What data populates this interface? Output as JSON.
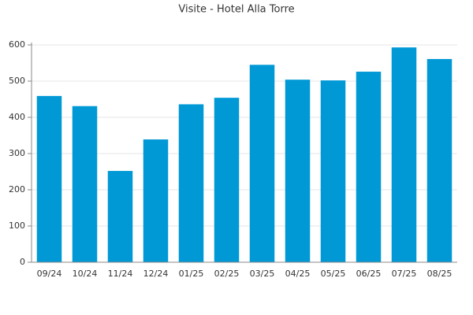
{
  "chart_data": {
    "type": "bar",
    "title": "Visite - Hotel Alla Torre",
    "categories": [
      "09/24",
      "10/24",
      "11/24",
      "12/24",
      "01/25",
      "02/25",
      "03/25",
      "04/25",
      "05/25",
      "06/25",
      "07/25",
      "08/25"
    ],
    "values": [
      459,
      431,
      252,
      339,
      436,
      454,
      545,
      504,
      502,
      526,
      593,
      561
    ],
    "color": "#0099d6",
    "ylim": [
      0,
      600
    ],
    "yticks": [
      0,
      100,
      200,
      300,
      400,
      500,
      600
    ],
    "grid": true
  }
}
